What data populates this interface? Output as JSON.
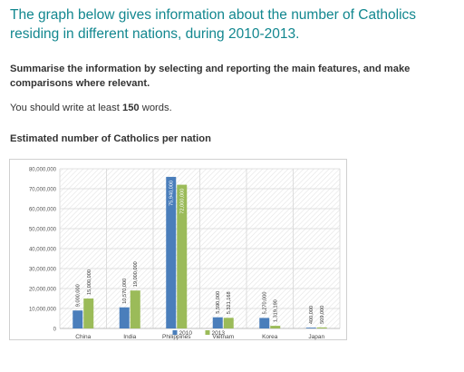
{
  "heading": "The graph below gives information about the number of Catholics residing in different nations, during 2010-2013.",
  "instructions": "Summarise the information by selecting and reporting the main features, and make comparisons where relevant.",
  "requirement": {
    "prefix": "You should write at least ",
    "count": "150",
    "suffix": " words."
  },
  "chart_heading": "Estimated number of Catholics per nation",
  "chart_data": {
    "type": "bar",
    "categories": [
      "China",
      "India",
      "Philippines",
      "Vietnam",
      "Korea",
      "Japan"
    ],
    "series": [
      {
        "name": "2010",
        "color": "#4a7ebb",
        "values": [
          9000000,
          10570000,
          75940000,
          5590000,
          5270000,
          400000
        ],
        "labels": [
          "9,000,000",
          "10,570,000",
          "75,940,000",
          "5,590,000",
          "5,270,000",
          "400,000"
        ]
      },
      {
        "name": "2013",
        "color": "#9bbb59",
        "values": [
          15000000,
          19000000,
          72000000,
          5321168,
          1319190,
          509000
        ],
        "labels": [
          "15,000,000",
          "19,000,000",
          "72,000,000",
          "5,321,168",
          "1,319,190",
          "509,000"
        ]
      }
    ],
    "ylim": [
      0,
      80000000
    ],
    "y_ticks": [
      "0",
      "10,000,000",
      "20,000,000",
      "30,000,000",
      "40,000,000",
      "50,000,000",
      "60,000,000",
      "70,000,000",
      "80,000,000"
    ],
    "legend": "bottom-center",
    "grid": true
  }
}
